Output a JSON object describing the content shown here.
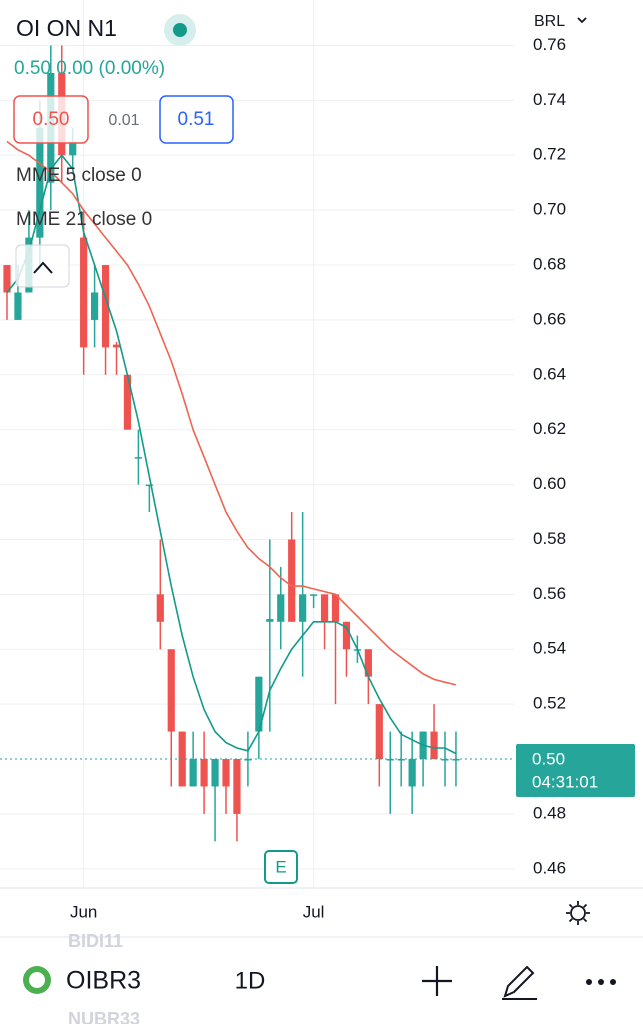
{
  "header": {
    "symbol": "OI ON N1",
    "change": "0.50 0.00 (0.00%)",
    "bid": "0.50",
    "spread": "0.01",
    "ask": "0.51"
  },
  "currency": "BRL",
  "event_marker": "E",
  "toolbar": {
    "symbol": "OIBR3",
    "interval": "1D"
  },
  "watchlist_ghost": [
    "BIDI11",
    "NUBR33"
  ],
  "chart_data": {
    "type": "candlestick",
    "categories": [
      null,
      null,
      null,
      null,
      null,
      null,
      null,
      "Jun",
      null,
      null,
      null,
      null,
      null,
      null,
      null,
      null,
      null,
      null,
      null,
      null,
      null,
      null,
      null,
      null,
      null,
      null,
      null,
      null,
      "Jul",
      null,
      null,
      null,
      null,
      null,
      null,
      null,
      null,
      null,
      null,
      null,
      null,
      null
    ],
    "open": [
      0.68,
      0.66,
      0.67,
      0.69,
      0.71,
      0.75,
      0.72,
      0.69,
      0.66,
      0.68,
      0.651,
      0.64,
      0.61,
      0.6,
      0.56,
      0.54,
      0.51,
      0.49,
      0.5,
      0.49,
      0.5,
      0.5,
      0.5,
      0.51,
      0.55,
      0.55,
      0.58,
      0.55,
      0.56,
      0.56,
      0.56,
      0.55,
      0.54,
      0.54,
      0.52,
      0.5,
      0.5,
      0.49,
      0.5,
      0.51,
      0.5,
      0.5
    ],
    "high": [
      0.68,
      0.68,
      0.7,
      0.74,
      0.76,
      0.76,
      0.73,
      0.7,
      0.68,
      0.68,
      0.652,
      0.64,
      0.62,
      0.6,
      0.58,
      0.54,
      0.51,
      0.51,
      0.51,
      0.5,
      0.5,
      0.5,
      0.51,
      0.53,
      0.58,
      0.57,
      0.59,
      0.59,
      0.56,
      0.56,
      0.56,
      0.55,
      0.545,
      0.54,
      0.52,
      0.51,
      0.51,
      0.51,
      0.51,
      0.52,
      0.51,
      0.51
    ],
    "low": [
      0.66,
      0.66,
      0.67,
      0.68,
      0.7,
      0.71,
      0.715,
      0.64,
      0.65,
      0.64,
      0.64,
      0.62,
      0.6,
      0.59,
      0.54,
      0.49,
      0.49,
      0.49,
      0.48,
      0.47,
      0.48,
      0.47,
      0.49,
      0.5,
      0.51,
      0.54,
      0.55,
      0.53,
      0.555,
      0.54,
      0.52,
      0.53,
      0.535,
      0.52,
      0.49,
      0.48,
      0.49,
      0.48,
      0.49,
      0.5,
      0.49,
      0.49
    ],
    "close": [
      0.67,
      0.67,
      0.69,
      0.73,
      0.75,
      0.72,
      0.725,
      0.65,
      0.67,
      0.65,
      0.65,
      0.62,
      0.61,
      0.6,
      0.55,
      0.51,
      0.49,
      0.5,
      0.49,
      0.5,
      0.49,
      0.48,
      0.5,
      0.53,
      0.551,
      0.56,
      0.55,
      0.56,
      0.56,
      0.55,
      0.55,
      0.54,
      0.54,
      0.53,
      0.5,
      0.5,
      0.5,
      0.5,
      0.51,
      0.5,
      0.5,
      0.5
    ],
    "up_color": "#26a69a",
    "down_color": "#ef5350",
    "series": [
      {
        "name": "MME 5 close 0",
        "color": "#139a8a",
        "values": [
          0.67,
          0.675,
          0.685,
          0.7,
          0.715,
          0.72,
          0.715,
          0.692,
          0.68,
          0.668,
          0.656,
          0.64,
          0.623,
          0.603,
          0.583,
          0.563,
          0.545,
          0.53,
          0.518,
          0.51,
          0.506,
          0.504,
          0.503,
          0.51,
          0.525,
          0.533,
          0.54,
          0.545,
          0.55,
          0.55,
          0.55,
          0.548,
          0.54,
          0.53,
          0.522,
          0.515,
          0.509,
          0.507,
          0.505,
          0.504,
          0.504,
          0.502
        ]
      },
      {
        "name": "MME 21 close 0",
        "color": "#ef6452",
        "values": [
          0.725,
          0.722,
          0.72,
          0.717,
          0.714,
          0.71,
          0.706,
          0.7,
          0.695,
          0.69,
          0.685,
          0.68,
          0.673,
          0.665,
          0.655,
          0.645,
          0.633,
          0.62,
          0.61,
          0.6,
          0.59,
          0.583,
          0.577,
          0.573,
          0.57,
          0.566,
          0.563,
          0.563,
          0.562,
          0.561,
          0.56,
          0.556,
          0.552,
          0.548,
          0.544,
          0.54,
          0.537,
          0.534,
          0.531,
          0.529,
          0.528,
          0.527
        ]
      }
    ],
    "last_price": {
      "value": 0.5,
      "label": "0.50"
    },
    "countdown": "04:31:01",
    "ylim": [
      0.453,
      0.762
    ],
    "yticks": [
      0.46,
      0.48,
      0.52,
      0.54,
      0.56,
      0.58,
      {
        "value": 0.6,
        "label": "0.60"
      },
      0.62,
      0.64,
      0.66,
      0.68,
      {
        "value": 0.7,
        "label": "0.70"
      },
      0.72,
      0.74,
      0.76
    ],
    "grid": true
  }
}
